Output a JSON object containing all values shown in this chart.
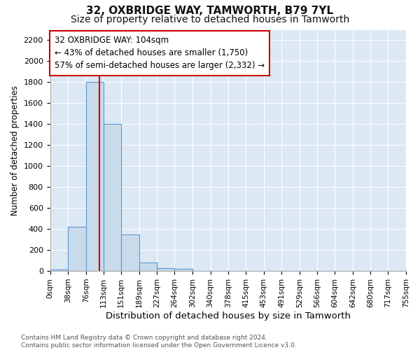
{
  "title": "32, OXBRIDGE WAY, TAMWORTH, B79 7YL",
  "subtitle": "Size of property relative to detached houses in Tamworth",
  "xlabel": "Distribution of detached houses by size in Tamworth",
  "ylabel": "Number of detached properties",
  "bin_edges": [
    0,
    38,
    76,
    113,
    151,
    189,
    227,
    264,
    302,
    340,
    378,
    415,
    453,
    491,
    529,
    566,
    604,
    642,
    680,
    717,
    755
  ],
  "bar_heights": [
    15,
    420,
    1800,
    1400,
    350,
    80,
    30,
    20,
    0,
    0,
    0,
    0,
    0,
    0,
    0,
    0,
    0,
    0,
    0,
    0
  ],
  "bar_color": "#c9daea",
  "bar_edge_color": "#5b9bd5",
  "property_size": 104,
  "vline_color": "#cc0000",
  "ylim": [
    0,
    2300
  ],
  "yticks": [
    0,
    200,
    400,
    600,
    800,
    1000,
    1200,
    1400,
    1600,
    1800,
    2000,
    2200
  ],
  "annotation_line1": "32 OXBRIDGE WAY: 104sqm",
  "annotation_line2": "← 43% of detached houses are smaller (1,750)",
  "annotation_line3": "57% of semi-detached houses are larger (2,332) →",
  "annotation_box_edgecolor": "#cc0000",
  "footer_line1": "Contains HM Land Registry data © Crown copyright and database right 2024.",
  "footer_line2": "Contains public sector information licensed under the Open Government Licence v3.0.",
  "plot_bg_color": "#dce8f4",
  "fig_bg_color": "#ffffff",
  "grid_color": "#ffffff",
  "title_fontsize": 11,
  "subtitle_fontsize": 10,
  "tick_fontsize": 7.5,
  "ylabel_fontsize": 8.5,
  "xlabel_fontsize": 9.5,
  "annot_fontsize": 8.5,
  "footer_fontsize": 6.5
}
